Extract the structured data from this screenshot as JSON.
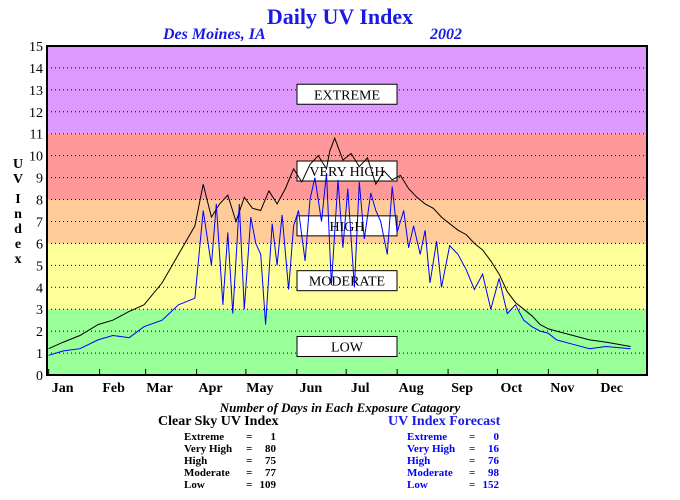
{
  "title": "Daily UV Index",
  "location": "Des Moines, IA",
  "year": "2002",
  "colors": {
    "low": "#99ff99",
    "moderate": "#ffff99",
    "high": "#ffcc99",
    "very_high": "#ff9999",
    "extreme": "#dd99ff",
    "clear_sky_series": "#000000",
    "forecast_series": "#0000ff",
    "header_text": "#1a1ae6"
  },
  "chart_data": {
    "type": "line",
    "title": "Daily UV Index",
    "xlabel": "",
    "ylabel": "UV Index",
    "ylim": [
      0,
      15
    ],
    "xlim": [
      0,
      365
    ],
    "grid": true,
    "y_ticks": [
      0,
      1,
      2,
      3,
      4,
      5,
      6,
      7,
      8,
      9,
      10,
      11,
      12,
      13,
      14,
      15
    ],
    "x_tick_labels": [
      "Jan",
      "Feb",
      "Mar",
      "Apr",
      "May",
      "Jun",
      "Jul",
      "Aug",
      "Sep",
      "Oct",
      "Nov",
      "Dec"
    ],
    "x_tick_days": [
      1,
      32,
      60,
      91,
      121,
      152,
      182,
      213,
      244,
      274,
      305,
      335
    ],
    "bands": [
      {
        "label": "LOW",
        "from": 0,
        "to": 3,
        "color": "#99ff99"
      },
      {
        "label": "MODERATE",
        "from": 3,
        "to": 6,
        "color": "#ffff99"
      },
      {
        "label": "HIGH",
        "from": 6,
        "to": 8,
        "color": "#ffcc99"
      },
      {
        "label": "VERY HIGH",
        "from": 8,
        "to": 11,
        "color": "#ff9999"
      },
      {
        "label": "EXTREME",
        "from": 11,
        "to": 15,
        "color": "#dd99ff"
      }
    ],
    "band_label_positions": [
      {
        "label": "EXTREME",
        "y": 12.8
      },
      {
        "label": "VERY HIGH",
        "y": 9.3
      },
      {
        "label": "HIGH",
        "y": 6.8
      },
      {
        "label": "MODERATE",
        "y": 4.3
      },
      {
        "label": "LOW",
        "y": 1.3
      }
    ],
    "series": [
      {
        "color": "#000000",
        "x": [
          1,
          10,
          20,
          31,
          40,
          50,
          59,
          70,
          80,
          90,
          95,
          100,
          105,
          110,
          115,
          120,
          125,
          130,
          135,
          140,
          145,
          150,
          155,
          160,
          165,
          170,
          172,
          175,
          180,
          185,
          190,
          195,
          200,
          205,
          210,
          215,
          220,
          225,
          230,
          235,
          240,
          245,
          250,
          255,
          260,
          265,
          270,
          275,
          280,
          285,
          290,
          295,
          300,
          305,
          310,
          320,
          330,
          340,
          355
        ],
        "y": [
          1.2,
          1.5,
          1.8,
          2.3,
          2.5,
          2.9,
          3.2,
          4.2,
          5.5,
          6.8,
          8.7,
          7.2,
          7.8,
          8.2,
          7.0,
          8.1,
          7.6,
          7.5,
          8.4,
          7.8,
          8.5,
          9.4,
          8.8,
          9.6,
          10.0,
          9.4,
          10.2,
          10.8,
          9.8,
          10.1,
          9.5,
          9.9,
          8.7,
          9.3,
          8.9,
          9.1,
          8.5,
          8.1,
          7.8,
          7.6,
          7.2,
          6.9,
          6.6,
          6.4,
          6.0,
          5.7,
          5.2,
          4.6,
          3.8,
          3.3,
          3.0,
          2.7,
          2.3,
          2.1,
          2.0,
          1.8,
          1.6,
          1.5,
          1.3
        ]
      },
      {
        "color": "#0000ff",
        "x": [
          1,
          10,
          20,
          31,
          40,
          50,
          59,
          70,
          80,
          90,
          95,
          100,
          103,
          107,
          110,
          113,
          117,
          120,
          124,
          127,
          130,
          133,
          137,
          140,
          143,
          147,
          150,
          153,
          157,
          160,
          163,
          167,
          170,
          173,
          177,
          180,
          183,
          187,
          190,
          193,
          197,
          200,
          203,
          207,
          210,
          213,
          217,
          220,
          223,
          227,
          230,
          233,
          237,
          240,
          245,
          250,
          255,
          260,
          265,
          270,
          275,
          280,
          285,
          290,
          295,
          300,
          305,
          310,
          320,
          330,
          340,
          355
        ],
        "y": [
          0.9,
          1.1,
          1.2,
          1.6,
          1.8,
          1.7,
          2.2,
          2.5,
          3.2,
          3.5,
          7.5,
          5.0,
          7.8,
          3.2,
          6.5,
          2.8,
          7.8,
          3.0,
          7.2,
          6.0,
          5.5,
          2.3,
          6.9,
          5.0,
          7.3,
          3.9,
          6.8,
          7.5,
          5.2,
          8.0,
          9.0,
          7.0,
          9.2,
          4.1,
          8.9,
          5.8,
          8.5,
          4.0,
          8.8,
          6.2,
          8.3,
          7.5,
          7.0,
          5.5,
          8.6,
          6.5,
          7.5,
          5.8,
          6.8,
          5.5,
          6.6,
          4.2,
          6.1,
          4.0,
          5.9,
          5.5,
          4.8,
          3.9,
          4.6,
          3.0,
          4.4,
          2.8,
          3.2,
          2.5,
          2.2,
          2.0,
          1.9,
          1.6,
          1.4,
          1.2,
          1.3,
          1.2
        ]
      }
    ]
  },
  "exposure_table": {
    "subtitle": "Number of Days in Each Exposure Catagory",
    "clear_sky": {
      "heading": "Clear Sky UV Index",
      "rows": [
        {
          "category": "Extreme",
          "eq": "=",
          "days": "1"
        },
        {
          "category": "Very High",
          "eq": "=",
          "days": "80"
        },
        {
          "category": "High",
          "eq": "=",
          "days": "75"
        },
        {
          "category": "Moderate",
          "eq": "=",
          "days": "77"
        },
        {
          "category": "Low",
          "eq": "=",
          "days": "109"
        }
      ]
    },
    "forecast": {
      "heading": "UV Index Forecast",
      "rows": [
        {
          "category": "Extreme",
          "eq": "=",
          "days": "0"
        },
        {
          "category": "Very High",
          "eq": "=",
          "days": "16"
        },
        {
          "category": "High",
          "eq": "=",
          "days": "76"
        },
        {
          "category": "Moderate",
          "eq": "=",
          "days": "98"
        },
        {
          "category": "Low",
          "eq": "=",
          "days": "152"
        }
      ]
    }
  }
}
